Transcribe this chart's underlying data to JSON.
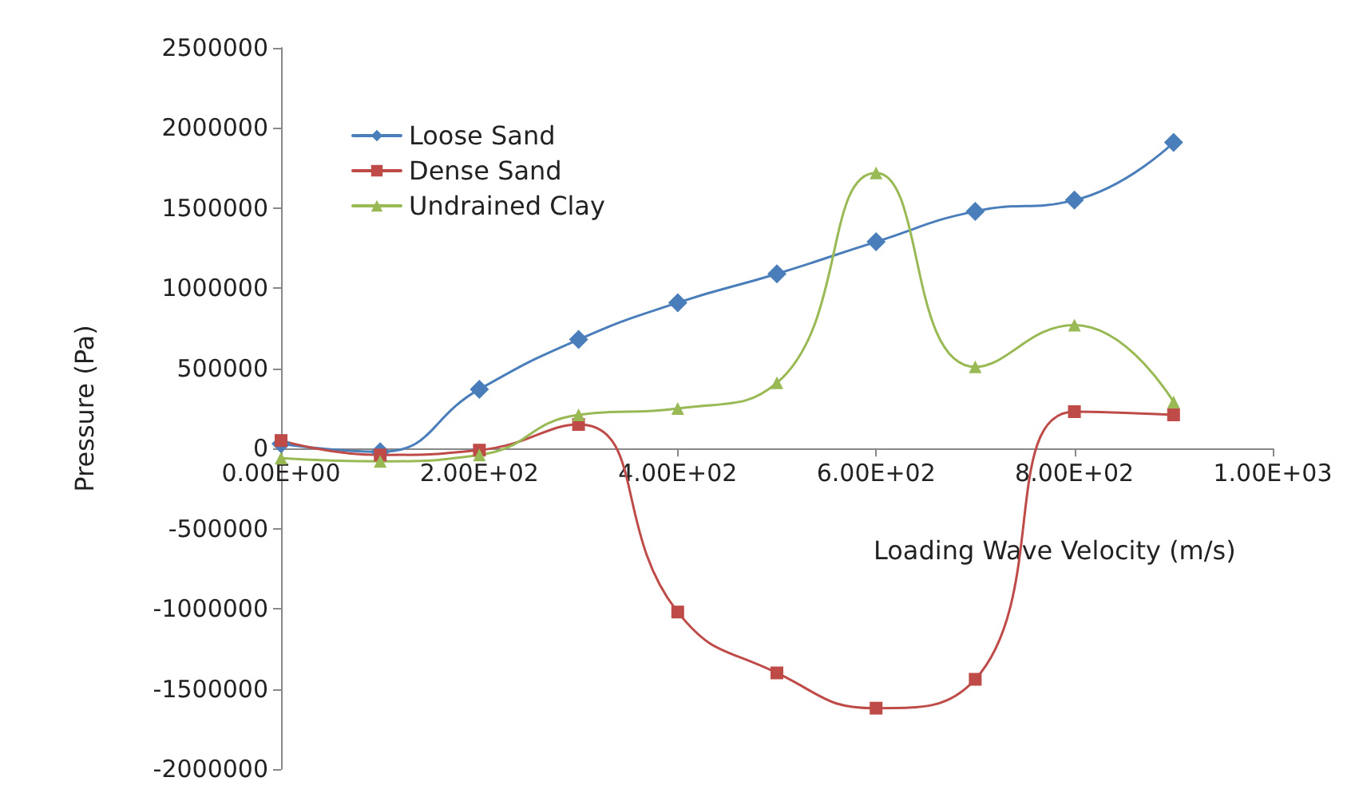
{
  "chart_data": {
    "type": "line",
    "xlabel": "Loading Wave Velocity (m/s)",
    "ylabel": "Pressure (Pa)",
    "x": [
      0,
      100,
      200,
      300,
      400,
      500,
      600,
      700,
      800,
      900
    ],
    "series": [
      {
        "name": "Loose Sand",
        "color": "#4a7ebb",
        "marker": "diamond",
        "values": [
          30000,
          -20000,
          370000,
          680000,
          910000,
          1090000,
          1290000,
          1480000,
          1550000,
          1910000
        ]
      },
      {
        "name": "Dense Sand",
        "color": "#be4b48",
        "marker": "square",
        "values": [
          50000,
          -40000,
          -10000,
          150000,
          -1020000,
          -1400000,
          -1620000,
          -1440000,
          230000,
          210000
        ]
      },
      {
        "name": "Undrained Clay",
        "color": "#98b954",
        "marker": "triangle",
        "values": [
          -60000,
          -80000,
          -40000,
          210000,
          250000,
          410000,
          1720000,
          510000,
          770000,
          290000
        ]
      }
    ],
    "xlim": [
      0,
      1000
    ],
    "xticks": [
      {
        "value": 0,
        "label": "0.00E+00"
      },
      {
        "value": 200,
        "label": "2.00E+02"
      },
      {
        "value": 400,
        "label": "4.00E+02"
      },
      {
        "value": 600,
        "label": "6.00E+02"
      },
      {
        "value": 800,
        "label": "8.00E+02"
      },
      {
        "value": 1000,
        "label": "1.00E+03"
      }
    ],
    "ylim": [
      -2000000,
      2500000
    ],
    "yticks": [
      -2000000,
      -1500000,
      -1000000,
      -500000,
      0,
      500000,
      1000000,
      1500000,
      2000000,
      2500000
    ],
    "grid": false,
    "legend": "top left",
    "line_style": "solid"
  }
}
